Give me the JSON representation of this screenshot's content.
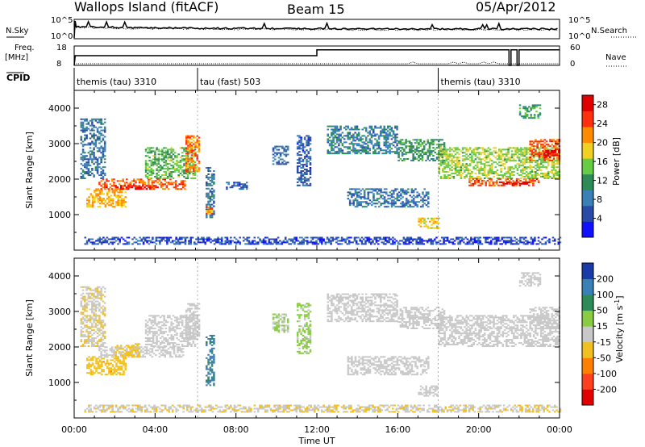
{
  "header": {
    "station": "Wallops Island (fitACF)",
    "beam": "Beam 15",
    "date": "05/Apr/2012"
  },
  "sky_panel": {
    "left_label": "N.Sky",
    "right_label": "N.Search",
    "left_ticks": [
      "10^5",
      "10^0"
    ],
    "right_ticks": [
      "10^5",
      "10^0"
    ]
  },
  "freq_panel": {
    "left_label_1": "Freq.",
    "left_label_2": "[MHz]",
    "right_label": "Nave",
    "left_ticks": [
      "18",
      "8"
    ],
    "right_ticks": [
      "60",
      "0"
    ]
  },
  "cpid": {
    "label": "CPID",
    "segments": [
      {
        "name": "themis (tau) 3310",
        "start_h": 0
      },
      {
        "name": "tau (fast) 503",
        "start_h": 6.1
      },
      {
        "name": "themis (tau) 3310",
        "start_h": 18
      }
    ]
  },
  "time_axis": {
    "label": "Time UT",
    "ticks": [
      "00:00",
      "04:00",
      "08:00",
      "12:00",
      "16:00",
      "20:00",
      "00:00"
    ]
  },
  "chart_data": [
    {
      "type": "heatmap",
      "title": "",
      "xlabel": "",
      "ylabel": "Slant Range [km]",
      "xlim_hours": [
        0,
        24
      ],
      "ylim": [
        0,
        4500
      ],
      "yticks": [
        "1000",
        "2000",
        "3000",
        "4000"
      ],
      "colorbar": {
        "label": "Power [dB]",
        "ticks": [
          "4",
          "8",
          "12",
          "16",
          "20",
          "24",
          "28"
        ],
        "range": [
          0,
          30
        ],
        "colors": [
          "#1010ff",
          "#2a4aa8",
          "#3a7fb5",
          "#2e8b57",
          "#66cc44",
          "#f0d020",
          "#ff8c00",
          "#ff3010",
          "#e00000"
        ]
      },
      "regions": [
        {
          "t0": 0.3,
          "t1": 1.5,
          "r0": 2000,
          "r1": 3700,
          "v": 8
        },
        {
          "t0": 0.6,
          "t1": 2.5,
          "r0": 1200,
          "r1": 1700,
          "v": 20
        },
        {
          "t0": 1.2,
          "t1": 5.5,
          "r0": 1700,
          "r1": 2000,
          "v": 24
        },
        {
          "t0": 2.0,
          "t1": 4.0,
          "r0": 1700,
          "r1": 1800,
          "v": 28
        },
        {
          "t0": 3.5,
          "t1": 6.0,
          "r0": 2000,
          "r1": 2900,
          "v": 14
        },
        {
          "t0": 5.5,
          "t1": 6.2,
          "r0": 2200,
          "r1": 3200,
          "v": 22
        },
        {
          "t0": 6.5,
          "t1": 6.9,
          "r0": 900,
          "r1": 2300,
          "v": 8
        },
        {
          "t0": 6.5,
          "t1": 6.9,
          "r0": 1000,
          "r1": 1200,
          "v": 22
        },
        {
          "t0": 7.5,
          "t1": 8.5,
          "r0": 1700,
          "r1": 1900,
          "v": 6
        },
        {
          "t0": 9.8,
          "t1": 10.6,
          "r0": 2400,
          "r1": 2900,
          "v": 7
        },
        {
          "t0": 11.0,
          "t1": 11.7,
          "r0": 1800,
          "r1": 3200,
          "v": 6
        },
        {
          "t0": 12.5,
          "t1": 16.0,
          "r0": 2700,
          "r1": 3500,
          "v": 9
        },
        {
          "t0": 13.5,
          "t1": 17.5,
          "r0": 1200,
          "r1": 1700,
          "v": 8
        },
        {
          "t0": 16.0,
          "t1": 18.3,
          "r0": 2500,
          "r1": 3100,
          "v": 12
        },
        {
          "t0": 17.0,
          "t1": 18.0,
          "r0": 600,
          "r1": 900,
          "v": 18
        },
        {
          "t0": 18.0,
          "t1": 24.0,
          "r0": 2000,
          "r1": 2900,
          "v": 16
        },
        {
          "t0": 19.5,
          "t1": 23.0,
          "r0": 1800,
          "r1": 2000,
          "v": 24
        },
        {
          "t0": 21.0,
          "t1": 22.5,
          "r0": 1800,
          "r1": 1900,
          "v": 28
        },
        {
          "t0": 22.5,
          "t1": 24.0,
          "r0": 2500,
          "r1": 3100,
          "v": 24
        },
        {
          "t0": 23.2,
          "t1": 24.0,
          "r0": 2600,
          "r1": 2800,
          "v": 28
        },
        {
          "t0": 22.0,
          "t1": 23.0,
          "r0": 3700,
          "r1": 4100,
          "v": 12
        },
        {
          "t0": 0.5,
          "t1": 24.0,
          "r0": 150,
          "r1": 350,
          "v": 5
        }
      ]
    },
    {
      "type": "heatmap",
      "title": "",
      "xlabel": "Time UT",
      "ylabel": "Slant Range [km]",
      "xlim_hours": [
        0,
        24
      ],
      "ylim": [
        0,
        4500
      ],
      "yticks": [
        "1000",
        "2000",
        "3000",
        "4000"
      ],
      "colorbar": {
        "label": "Velocity [m s^-1]",
        "ticks": [
          "200",
          "100",
          "50",
          "15",
          "-15",
          "-50",
          "-100",
          "-200"
        ],
        "range": [
          -250,
          250
        ],
        "colors": [
          "#e00000",
          "#ff4020",
          "#ff8000",
          "#f0c020",
          "#c8c8c8",
          "#88cc44",
          "#2e8b57",
          "#3a7fb5",
          "#1a3aa8"
        ]
      },
      "regions": [
        {
          "t0": 0.3,
          "t1": 1.5,
          "r0": 2000,
          "r1": 3700,
          "v": -20
        },
        {
          "t0": 0.6,
          "t1": 2.5,
          "r0": 1200,
          "r1": 1700,
          "v": -60
        },
        {
          "t0": 1.2,
          "t1": 5.5,
          "r0": 1700,
          "r1": 2000,
          "v": 0
        },
        {
          "t0": 2.0,
          "t1": 3.2,
          "r0": 1700,
          "r1": 2100,
          "v": -60
        },
        {
          "t0": 3.5,
          "t1": 6.0,
          "r0": 2000,
          "r1": 2900,
          "v": 0
        },
        {
          "t0": 5.5,
          "t1": 6.2,
          "r0": 2200,
          "r1": 3200,
          "v": 0
        },
        {
          "t0": 6.5,
          "t1": 6.9,
          "r0": 900,
          "r1": 2300,
          "v": 150
        },
        {
          "t0": 9.8,
          "t1": 10.6,
          "r0": 2400,
          "r1": 2900,
          "v": 30
        },
        {
          "t0": 11.0,
          "t1": 11.7,
          "r0": 1800,
          "r1": 3200,
          "v": 40
        },
        {
          "t0": 12.5,
          "t1": 16.0,
          "r0": 2700,
          "r1": 3500,
          "v": 0
        },
        {
          "t0": 13.5,
          "t1": 17.5,
          "r0": 1200,
          "r1": 1700,
          "v": 0
        },
        {
          "t0": 16.0,
          "t1": 18.3,
          "r0": 2500,
          "r1": 3100,
          "v": 0
        },
        {
          "t0": 17.0,
          "t1": 18.0,
          "r0": 600,
          "r1": 900,
          "v": 0
        },
        {
          "t0": 18.0,
          "t1": 24.0,
          "r0": 2000,
          "r1": 2900,
          "v": 0
        },
        {
          "t0": 22.5,
          "t1": 24.0,
          "r0": 2500,
          "r1": 3100,
          "v": 0
        },
        {
          "t0": 22.0,
          "t1": 23.0,
          "r0": 3700,
          "r1": 4100,
          "v": 0
        },
        {
          "t0": 0.5,
          "t1": 24.0,
          "r0": 150,
          "r1": 350,
          "v": -20
        }
      ]
    }
  ]
}
